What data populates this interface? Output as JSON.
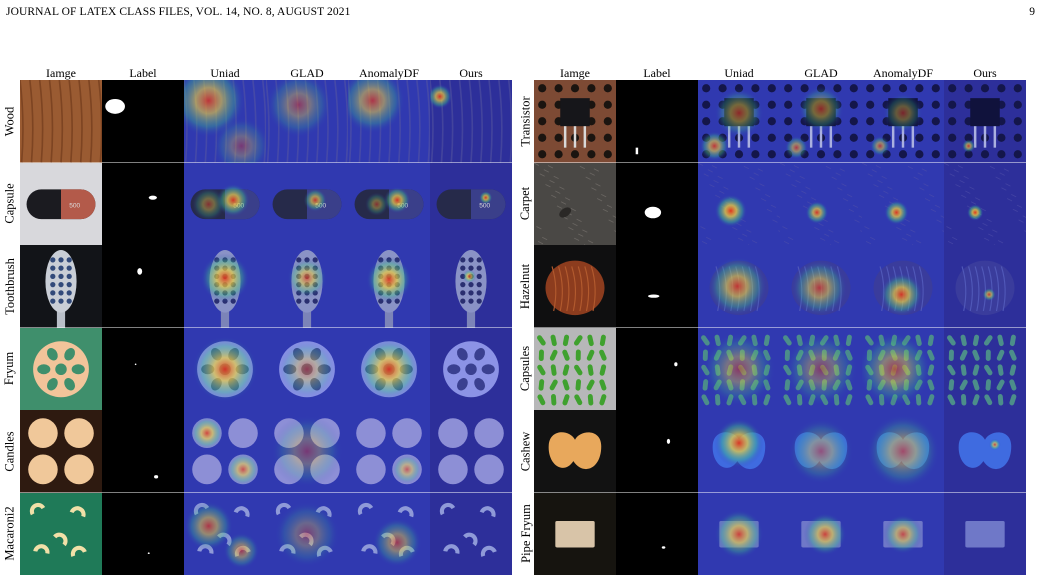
{
  "header": {
    "running_head": "JOURNAL OF LATEX CLASS FILES, VOL. 14, NO. 8, AUGUST 2021",
    "page_number": "9"
  },
  "figure": {
    "columns": [
      "Iamge",
      "Label",
      "Uniad",
      "GLAD",
      "AnomalyDF",
      "Ours"
    ],
    "left_rows": [
      "Wood",
      "Capsule",
      "Toothbrush",
      "Fryum",
      "Candles",
      "Macaroni2"
    ],
    "right_rows": [
      "Transistor",
      "Carpet",
      "Hazelnut",
      "Capsules",
      "Cashew",
      "Pipe Fryum"
    ]
  },
  "colors": {
    "heatmap_cold": "#2b2fb8",
    "heatmap_warm": "#f0d23c",
    "heatmap_hot": "#e0331d",
    "label_mask": "#ffffff",
    "label_bg": "#000000"
  }
}
